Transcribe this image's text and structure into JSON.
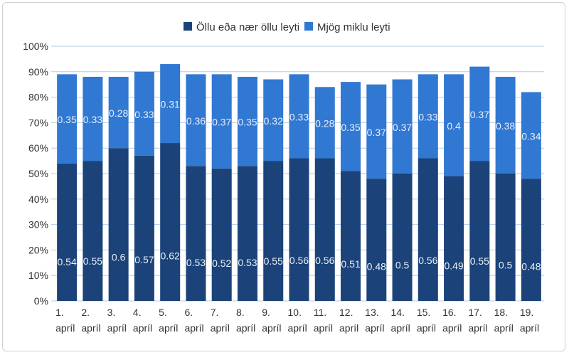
{
  "chart_data": {
    "type": "bar",
    "stacked": true,
    "title": "",
    "xlabel": "",
    "ylabel": "",
    "ylim": [
      0,
      1
    ],
    "yticks": [
      "0%",
      "10%",
      "20%",
      "30%",
      "40%",
      "50%",
      "60%",
      "70%",
      "80%",
      "90%",
      "100%"
    ],
    "grid": true,
    "legend_position": "top",
    "categories": [
      [
        "1.",
        "apríl"
      ],
      [
        "2.",
        "apríl"
      ],
      [
        "3.",
        "apríl"
      ],
      [
        "4.",
        "apríl"
      ],
      [
        "5.",
        "apríl"
      ],
      [
        "6.",
        "apríl"
      ],
      [
        "7.",
        "apríl"
      ],
      [
        "8.",
        "apríl"
      ],
      [
        "9.",
        "apríl"
      ],
      [
        "10.",
        "apríl"
      ],
      [
        "11.",
        "apríl"
      ],
      [
        "12.",
        "apríl"
      ],
      [
        "13.",
        "apríl"
      ],
      [
        "14.",
        "apríl"
      ],
      [
        "15.",
        "apríl"
      ],
      [
        "16.",
        "apríl"
      ],
      [
        "17.",
        "apríl"
      ],
      [
        "18.",
        "apríl"
      ],
      [
        "19.",
        "apríl"
      ]
    ],
    "series": [
      {
        "name": "Öllu eða nær öllu leyti",
        "color": "#1b4379",
        "values": [
          0.54,
          0.55,
          0.6,
          0.57,
          0.62,
          0.53,
          0.52,
          0.53,
          0.55,
          0.56,
          0.56,
          0.51,
          0.48,
          0.5,
          0.56,
          0.49,
          0.55,
          0.5,
          0.48
        ]
      },
      {
        "name": "Mjög miklu leyti",
        "color": "#3178d2",
        "values": [
          0.35,
          0.33,
          0.28,
          0.33,
          0.31,
          0.36,
          0.37,
          0.35,
          0.32,
          0.33,
          0.28,
          0.35,
          0.37,
          0.37,
          0.33,
          0.4,
          0.37,
          0.38,
          0.34
        ]
      }
    ]
  }
}
